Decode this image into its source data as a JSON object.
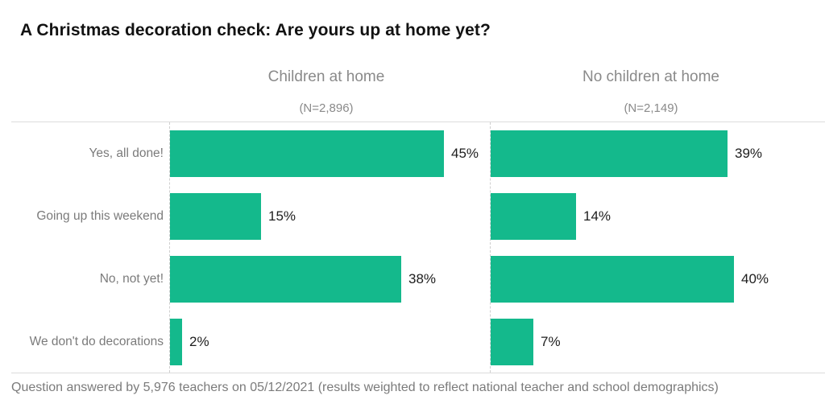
{
  "title": "A Christmas decoration check: Are yours up at home yet?",
  "footer": "Question answered by 5,976 teachers on 05/12/2021 (results weighted to reflect national teacher and school demographics)",
  "colors": {
    "bar": "#14b98c",
    "title_text": "#121212",
    "gray_text": "#7b7b7b",
    "grid_line": "#dcdcdc"
  },
  "chart_data": {
    "type": "bar",
    "orientation": "horizontal",
    "title": "A Christmas decoration check: Are yours up at home yet?",
    "categories": [
      "Yes, all done!",
      "Going up this weekend",
      "No, not yet!",
      "We don't do decorations"
    ],
    "series": [
      {
        "name": "Children at home",
        "n_label": "(N=2,896)",
        "values": [
          45,
          15,
          38,
          2
        ]
      },
      {
        "name": "No children at home",
        "n_label": "(N=2,149)",
        "values": [
          39,
          14,
          40,
          7
        ]
      }
    ],
    "value_suffix": "%",
    "xlim": [
      0,
      52
    ],
    "grid": false,
    "legend_position": "none",
    "value_labels": "outside-end"
  }
}
